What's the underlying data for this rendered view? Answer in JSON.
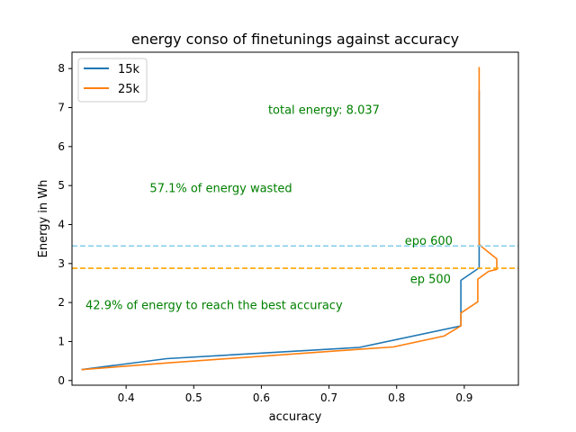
{
  "chart_data": {
    "type": "line",
    "title": "energy conso of finetunings against accuracy",
    "xlabel": "accuracy",
    "ylabel": "Energy in Wh",
    "xlim": [
      0.32,
      0.98
    ],
    "ylim": [
      -0.12,
      8.42
    ],
    "xticks": [
      0.4,
      0.5,
      0.6,
      0.7,
      0.8,
      0.9
    ],
    "xtick_labels": [
      "0.4",
      "0.5",
      "0.6",
      "0.7",
      "0.8",
      "0.9"
    ],
    "yticks": [
      0,
      1,
      2,
      3,
      4,
      5,
      6,
      7,
      8
    ],
    "ytick_labels": [
      "0",
      "1",
      "2",
      "3",
      "4",
      "5",
      "6",
      "7",
      "8"
    ],
    "grid": false,
    "legend_position": "upper-left",
    "series": [
      {
        "name": "15k",
        "color": "#1f77b4",
        "points": [
          [
            0.334,
            0.28
          ],
          [
            0.46,
            0.56
          ],
          [
            0.745,
            0.85
          ],
          [
            0.895,
            1.4
          ],
          [
            0.895,
            2.57
          ],
          [
            0.922,
            2.89
          ],
          [
            0.922,
            3.45
          ],
          [
            0.922,
            7.43
          ]
        ]
      },
      {
        "name": "25k",
        "color": "#ff7f0e",
        "points": [
          [
            0.334,
            0.28
          ],
          [
            0.46,
            0.45
          ],
          [
            0.745,
            0.8
          ],
          [
            0.795,
            0.86
          ],
          [
            0.87,
            1.14
          ],
          [
            0.895,
            1.4
          ],
          [
            0.895,
            1.73
          ],
          [
            0.92,
            2.02
          ],
          [
            0.92,
            2.6
          ],
          [
            0.936,
            2.8
          ],
          [
            0.948,
            2.85
          ],
          [
            0.948,
            3.12
          ],
          [
            0.925,
            3.44
          ],
          [
            0.922,
            3.5
          ],
          [
            0.922,
            8.04
          ]
        ]
      }
    ],
    "hlines": [
      {
        "y": 3.45,
        "color": "#87ceeb",
        "style": "dashed"
      },
      {
        "y": 2.88,
        "color": "#ffa500",
        "style": "dashed"
      }
    ],
    "annotations": [
      {
        "text": "total energy: 8.037",
        "x": 0.61,
        "y": 6.95,
        "color": "#008000"
      },
      {
        "text": "57.1% of energy wasted",
        "x": 0.435,
        "y": 4.95,
        "color": "#008000"
      },
      {
        "text": "epo 600",
        "x": 0.812,
        "y": 3.6,
        "color": "#008000"
      },
      {
        "text": "ep 500",
        "x": 0.82,
        "y": 2.62,
        "color": "#008000"
      },
      {
        "text": "42.9% of energy to reach the best accuracy",
        "x": 0.34,
        "y": 1.95,
        "color": "#008000"
      }
    ]
  }
}
